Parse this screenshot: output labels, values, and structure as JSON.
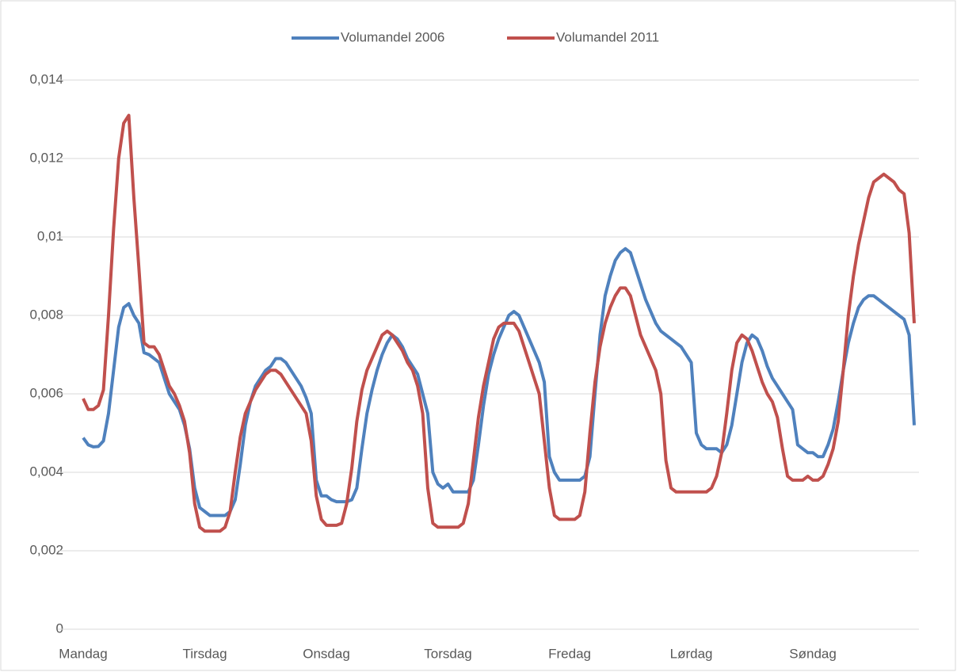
{
  "chart_data": {
    "type": "line",
    "categories": [
      "Mandag",
      null,
      null,
      null,
      null,
      null,
      null,
      null,
      null,
      null,
      null,
      null,
      null,
      null,
      null,
      null,
      null,
      null,
      null,
      null,
      null,
      null,
      null,
      null,
      "Tirsdag",
      null,
      null,
      null,
      null,
      null,
      null,
      null,
      null,
      null,
      null,
      null,
      null,
      null,
      null,
      null,
      null,
      null,
      null,
      null,
      null,
      null,
      null,
      null,
      "Onsdag",
      null,
      null,
      null,
      null,
      null,
      null,
      null,
      null,
      null,
      null,
      null,
      null,
      null,
      null,
      null,
      null,
      null,
      null,
      null,
      null,
      null,
      null,
      null,
      "Torsdag",
      null,
      null,
      null,
      null,
      null,
      null,
      null,
      null,
      null,
      null,
      null,
      null,
      null,
      null,
      null,
      null,
      null,
      null,
      null,
      null,
      null,
      null,
      null,
      "Fredag",
      null,
      null,
      null,
      null,
      null,
      null,
      null,
      null,
      null,
      null,
      null,
      null,
      null,
      null,
      null,
      null,
      null,
      null,
      null,
      null,
      null,
      null,
      null,
      "Lørdag",
      null,
      null,
      null,
      null,
      null,
      null,
      null,
      null,
      null,
      null,
      null,
      null,
      null,
      null,
      null,
      null,
      null,
      null,
      null,
      null,
      null,
      null,
      null,
      "Søndag",
      null,
      null,
      null,
      null,
      null,
      null,
      null,
      null,
      null,
      null,
      null,
      null,
      null,
      null,
      null,
      null,
      null,
      null,
      null,
      null
    ],
    "series": [
      {
        "name": "Volumandel 2006",
        "color": "#4f81bd",
        "values": [
          0.00488,
          0.0047,
          0.00465,
          0.00466,
          0.0048,
          0.0055,
          0.0066,
          0.0077,
          0.0082,
          0.0083,
          0.008,
          0.0078,
          0.00705,
          0.007,
          0.0069,
          0.0068,
          0.0064,
          0.006,
          0.0058,
          0.0056,
          0.0052,
          0.0046,
          0.0036,
          0.0031,
          0.003,
          0.0029,
          0.0029,
          0.0029,
          0.0029,
          0.003,
          0.0033,
          0.0042,
          0.0052,
          0.0058,
          0.0062,
          0.0064,
          0.0066,
          0.0067,
          0.0069,
          0.0069,
          0.0068,
          0.0066,
          0.0064,
          0.0062,
          0.0059,
          0.0055,
          0.0038,
          0.0034,
          0.0034,
          0.0033,
          0.00325,
          0.00325,
          0.00325,
          0.0033,
          0.0036,
          0.0046,
          0.0055,
          0.0061,
          0.0066,
          0.007,
          0.0073,
          0.0075,
          0.0074,
          0.0072,
          0.0069,
          0.0067,
          0.0065,
          0.006,
          0.0055,
          0.004,
          0.0037,
          0.0036,
          0.0037,
          0.0035,
          0.0035,
          0.0035,
          0.0035,
          0.0038,
          0.0047,
          0.0057,
          0.0065,
          0.007,
          0.0074,
          0.0077,
          0.008,
          0.0081,
          0.008,
          0.0077,
          0.0074,
          0.0071,
          0.0068,
          0.0063,
          0.0044,
          0.004,
          0.0038,
          0.0038,
          0.0038,
          0.0038,
          0.0038,
          0.0039,
          0.0044,
          0.006,
          0.0075,
          0.0085,
          0.009,
          0.0094,
          0.0096,
          0.0097,
          0.0096,
          0.0092,
          0.0088,
          0.0084,
          0.0081,
          0.0078,
          0.0076,
          0.0075,
          0.0074,
          0.0073,
          0.0072,
          0.007,
          0.0068,
          0.005,
          0.0047,
          0.0046,
          0.0046,
          0.0046,
          0.0045,
          0.0047,
          0.0052,
          0.006,
          0.0068,
          0.0073,
          0.0075,
          0.0074,
          0.0071,
          0.0067,
          0.0064,
          0.0062,
          0.006,
          0.0058,
          0.0056,
          0.0047,
          0.0046,
          0.0045,
          0.0045,
          0.0044,
          0.0044,
          0.0047,
          0.0051,
          0.0058,
          0.0066,
          0.0073,
          0.0078,
          0.0082,
          0.0084,
          0.0085,
          0.0085,
          0.0084,
          0.0083,
          0.0082,
          0.0081,
          0.008,
          0.0079,
          0.0075,
          0.0052
        ]
      },
      {
        "name": "Volumandel 2011",
        "color": "#c0504d",
        "values": [
          0.00588,
          0.0056,
          0.0056,
          0.0057,
          0.0061,
          0.008,
          0.0102,
          0.012,
          0.0129,
          0.0131,
          0.011,
          0.0092,
          0.0073,
          0.0072,
          0.0072,
          0.007,
          0.0066,
          0.0062,
          0.006,
          0.0057,
          0.0053,
          0.0045,
          0.0032,
          0.0026,
          0.0025,
          0.0025,
          0.0025,
          0.0025,
          0.0026,
          0.003,
          0.004,
          0.0049,
          0.0055,
          0.0058,
          0.0061,
          0.0063,
          0.0065,
          0.0066,
          0.0066,
          0.0065,
          0.0063,
          0.0061,
          0.0059,
          0.0057,
          0.0055,
          0.0048,
          0.0034,
          0.0028,
          0.00265,
          0.00265,
          0.00265,
          0.0027,
          0.0032,
          0.0041,
          0.0053,
          0.0061,
          0.0066,
          0.0069,
          0.0072,
          0.0075,
          0.0076,
          0.0075,
          0.0073,
          0.0071,
          0.0068,
          0.0066,
          0.0062,
          0.0055,
          0.0036,
          0.0027,
          0.0026,
          0.0026,
          0.0026,
          0.0026,
          0.0026,
          0.0027,
          0.0032,
          0.0043,
          0.0054,
          0.0062,
          0.0068,
          0.0074,
          0.0077,
          0.0078,
          0.0078,
          0.0078,
          0.0076,
          0.0072,
          0.0068,
          0.0064,
          0.006,
          0.0048,
          0.0036,
          0.0029,
          0.0028,
          0.0028,
          0.0028,
          0.0028,
          0.0029,
          0.0035,
          0.005,
          0.0063,
          0.0072,
          0.0078,
          0.0082,
          0.0085,
          0.0087,
          0.0087,
          0.0085,
          0.008,
          0.0075,
          0.0072,
          0.0069,
          0.0066,
          0.006,
          0.0043,
          0.0036,
          0.0035,
          0.0035,
          0.0035,
          0.0035,
          0.0035,
          0.0035,
          0.0035,
          0.0036,
          0.0039,
          0.0045,
          0.0055,
          0.0066,
          0.0073,
          0.0075,
          0.0074,
          0.0071,
          0.0067,
          0.0063,
          0.006,
          0.0058,
          0.0054,
          0.0046,
          0.0039,
          0.0038,
          0.0038,
          0.0038,
          0.0039,
          0.0038,
          0.0038,
          0.0039,
          0.0042,
          0.0046,
          0.0053,
          0.0066,
          0.008,
          0.009,
          0.0098,
          0.0104,
          0.011,
          0.0114,
          0.0115,
          0.0116,
          0.0115,
          0.0114,
          0.0112,
          0.0111,
          0.0101,
          0.0078
        ]
      }
    ],
    "ylim": [
      0,
      0.014
    ],
    "yticks": [
      0,
      {
        "value": 0.002,
        "label": "0,002"
      },
      {
        "value": 0.004,
        "label": "0,004"
      },
      {
        "value": 0.006,
        "label": "0,006"
      },
      {
        "value": 0.008,
        "label": "0,008"
      },
      {
        "value": 0.01,
        "label": "0,01"
      },
      {
        "value": 0.012,
        "label": "0,012"
      },
      {
        "value": 0.014,
        "label": "0,014"
      }
    ],
    "grid": true,
    "legend": "top"
  }
}
